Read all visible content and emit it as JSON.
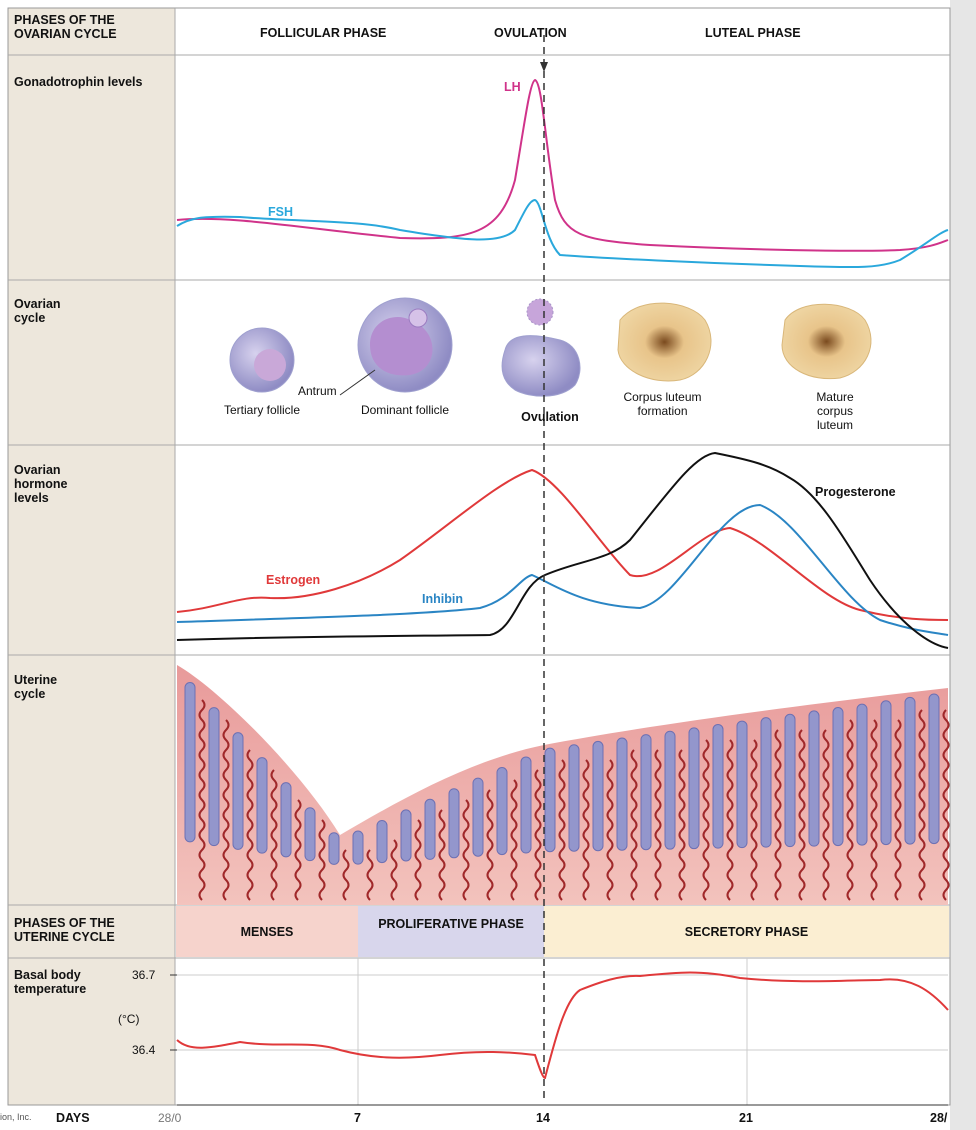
{
  "header": {
    "left": "PHASES OF THE OVARIAN CYCLE",
    "follicular": "FOLLICULAR PHASE",
    "ovulation": "OVULATION",
    "luteal": "LUTEAL PHASE"
  },
  "rows": {
    "gonadotrophin": "Gonadotrophin levels",
    "ovarian_cycle": "Ovarian cycle",
    "hormones": "Ovarian hormone levels",
    "uterine": "Uterine cycle",
    "uterine_phases": "PHASES OF THE UTERINE CYCLE",
    "bbt": "Basal body temperature",
    "bbt_unit": "(°C)"
  },
  "curves": {
    "lh": "LH",
    "fsh": "FSH",
    "estrogen": "Estrogen",
    "inhibin": "Inhibin",
    "progesterone": "Progesterone"
  },
  "stages": {
    "tertiary": "Tertiary follicle",
    "antrum": "Antrum",
    "dominant": "Dominant follicle",
    "ovulation": "Ovulation",
    "formation": "Corpus luteum formation",
    "mature": "Mature corpus luteum"
  },
  "uterine_phases": [
    "MENSES",
    "PROLIFERATIVE PHASE",
    "SECRETORY PHASE"
  ],
  "bbt_ticks": [
    "36.7",
    "36.4"
  ],
  "days": {
    "label": "DAYS",
    "ticks": [
      "28/0",
      "7",
      "14",
      "21",
      "28/"
    ]
  },
  "credit": "ion, Inc."
}
